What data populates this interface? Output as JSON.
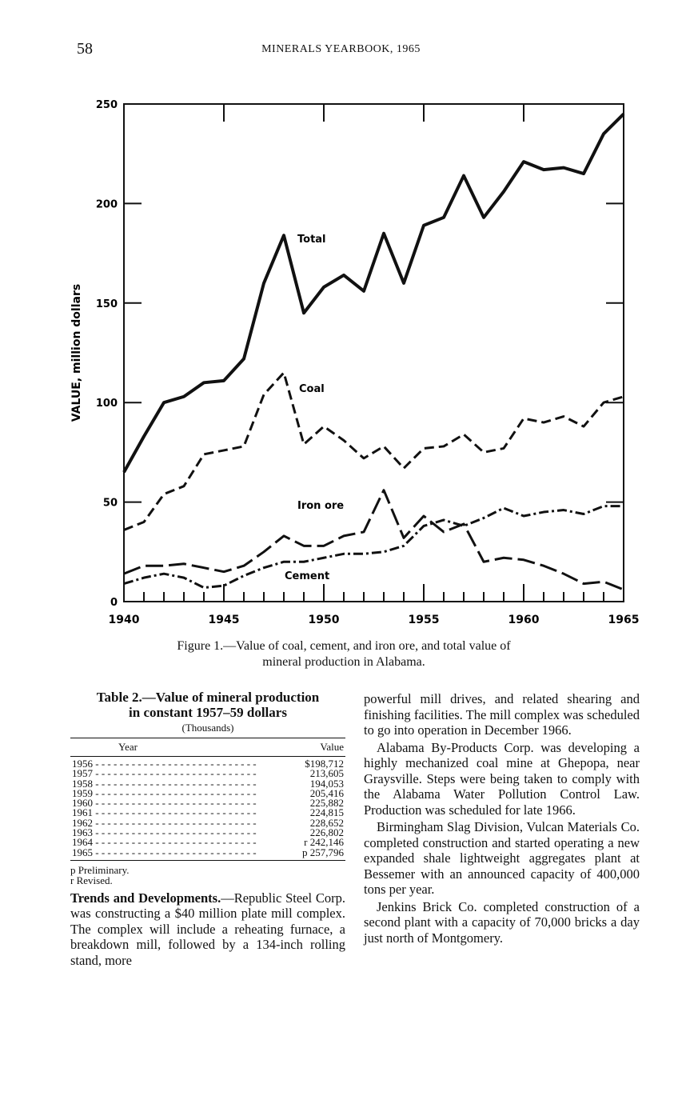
{
  "header": {
    "page_number": "58",
    "running_title": "MINERALS YEARBOOK, 1965"
  },
  "chart_data": {
    "type": "line",
    "title": "",
    "ylabel": "VALUE, million dollars",
    "xlabel": "",
    "xlim": [
      1940,
      1965
    ],
    "ylim": [
      0,
      250
    ],
    "x_ticks": [
      "1940",
      "1945",
      "1950",
      "1955",
      "1960",
      "1965"
    ],
    "y_ticks": [
      "0",
      "50",
      "100",
      "150",
      "200",
      "250"
    ],
    "grid": false,
    "x": [
      1940,
      1941,
      1942,
      1943,
      1944,
      1945,
      1946,
      1947,
      1948,
      1949,
      1950,
      1951,
      1952,
      1953,
      1954,
      1955,
      1956,
      1957,
      1958,
      1959,
      1960,
      1961,
      1962,
      1963,
      1964,
      1965
    ],
    "series": [
      {
        "name": "Total",
        "style": "solid",
        "values": [
          65,
          83,
          100,
          103,
          110,
          111,
          122,
          160,
          184,
          145,
          158,
          164,
          156,
          185,
          160,
          189,
          193,
          214,
          193,
          206,
          221,
          217,
          218,
          215,
          235,
          245
        ]
      },
      {
        "name": "Coal",
        "style": "dashed",
        "values": [
          36,
          40,
          54,
          58,
          74,
          76,
          78,
          104,
          115,
          79,
          88,
          81,
          72,
          78,
          67,
          77,
          78,
          84,
          75,
          77,
          92,
          90,
          93,
          88,
          100,
          103
        ]
      },
      {
        "name": "Iron ore",
        "style": "long-dash",
        "values": [
          14,
          18,
          18,
          19,
          17,
          15,
          18,
          25,
          33,
          28,
          28,
          33,
          35,
          56,
          32,
          43,
          35,
          39,
          20,
          22,
          21,
          18,
          14,
          9,
          10,
          6
        ]
      },
      {
        "name": "Cement",
        "style": "dash-dot",
        "values": [
          9,
          12,
          14,
          12,
          7,
          8,
          13,
          17,
          20,
          20,
          22,
          24,
          24,
          25,
          28,
          38,
          41,
          38,
          42,
          47,
          43,
          45,
          46,
          44,
          48,
          48
        ]
      }
    ]
  },
  "caption": {
    "line1": "Figure 1.—Value of coal, cement, and iron ore, and total value of",
    "line2": "mineral production in Alabama."
  },
  "table": {
    "title_line1": "Table 2.—Value of mineral production",
    "title_line2": "in constant 1957–59 dollars",
    "subtitle": "(Thousands)",
    "headers": [
      "Year",
      "Value"
    ],
    "rows": [
      {
        "year": "1956",
        "value": "$198,712"
      },
      {
        "year": "1957",
        "value": "213,605"
      },
      {
        "year": "1958",
        "value": "194,053"
      },
      {
        "year": "1959",
        "value": "205,416"
      },
      {
        "year": "1960",
        "value": "225,882"
      },
      {
        "year": "1961",
        "value": "224,815"
      },
      {
        "year": "1962",
        "value": "228,652"
      },
      {
        "year": "1963",
        "value": "226,802"
      },
      {
        "year": "1964",
        "value": "r 242,146"
      },
      {
        "year": "1965",
        "value": "p 257,796"
      }
    ],
    "notes": [
      "p Preliminary.",
      "r Revised."
    ]
  },
  "text": {
    "left_heading": "Trends and Developments.",
    "left_body": "—Republic Steel Corp. was constructing a $40 million plate mill complex. The complex will include a reheating furnace, a breakdown mill, followed by a 134-inch rolling stand, more",
    "right_paragraphs": [
      "powerful mill drives, and related shearing and finishing facilities. The mill complex was scheduled to go into operation in December 1966.",
      "Alabama By-Products Corp. was developing a highly mechanized coal mine at Ghepopa, near Graysville. Steps were being taken to comply with the Alabama Water Pollution Control Law. Production was scheduled for late 1966.",
      "Birmingham Slag Division, Vulcan Materials Co. completed construction and started operating a new expanded shale lightweight aggregates plant at Bessemer with an announced capacity of 400,000 tons per year.",
      "Jenkins Brick Co. completed construction of a second plant with a capacity of 70,000 bricks a day just north of Montgomery."
    ]
  }
}
